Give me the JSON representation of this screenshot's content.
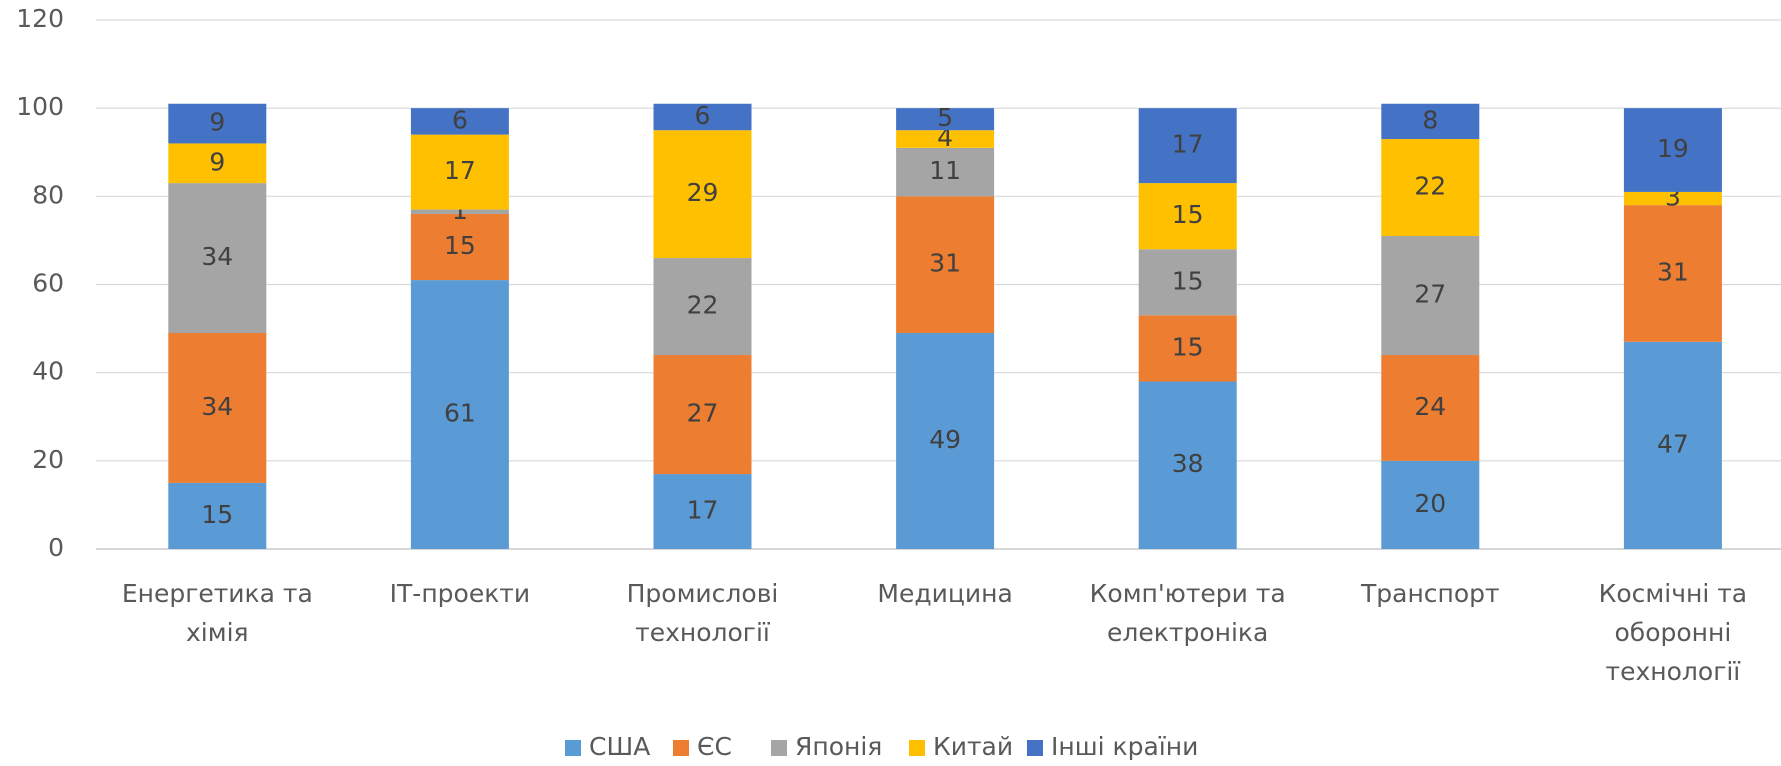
{
  "chart_data": {
    "type": "stacked_bar",
    "categories": [
      "Енергетика та\nхімія",
      "ІТ-проекти",
      "Промислові\nтехнології",
      "Медицина",
      "Комп'ютери та\nелектроніка",
      "Транспорт",
      "Космічні та\nоборонні\nтехнології"
    ],
    "series": [
      {
        "name": "США",
        "color": "#5b9bd5",
        "values": [
          15,
          61,
          17,
          49,
          38,
          20,
          47
        ]
      },
      {
        "name": "ЄС",
        "color": "#ed7d31",
        "values": [
          34,
          15,
          27,
          31,
          15,
          24,
          31
        ]
      },
      {
        "name": "Японія",
        "color": "#a5a5a5",
        "values": [
          34,
          1,
          22,
          11,
          15,
          27,
          null
        ]
      },
      {
        "name": "Китай",
        "color": "#ffc000",
        "values": [
          9,
          17,
          29,
          4,
          15,
          22,
          3
        ]
      },
      {
        "name": "Інші країни",
        "color": "#4472c4",
        "values": [
          9,
          6,
          6,
          5,
          17,
          8,
          19
        ]
      }
    ],
    "ylim": [
      0,
      120
    ],
    "yticks": [
      0,
      20,
      40,
      60,
      80,
      100,
      120
    ],
    "grid": true,
    "legend": "bottom"
  }
}
